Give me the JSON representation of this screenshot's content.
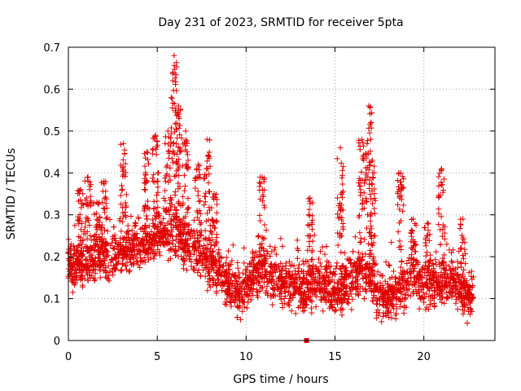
{
  "chart_data": {
    "type": "scatter",
    "title": "Day 231 of 2023, SRMTID for receiver 5pta",
    "xlabel": "GPS time / hours",
    "ylabel": "SRMTID / TECUs",
    "xlim": [
      0,
      24
    ],
    "ylim": [
      0,
      0.7
    ],
    "xticks": [
      0,
      5,
      10,
      15,
      20
    ],
    "yticks": [
      0,
      0.1,
      0.2,
      0.3,
      0.4,
      0.5,
      0.6,
      0.7
    ],
    "grid": true,
    "marker": "plus",
    "color": "#e00000",
    "series": [
      {
        "name": "SRMTID",
        "profile_hours": [
          0.0,
          0.5,
          1.0,
          1.5,
          2.0,
          2.5,
          3.0,
          3.5,
          4.0,
          4.5,
          5.0,
          5.5,
          6.0,
          6.5,
          7.0,
          7.5,
          8.0,
          8.5,
          9.0,
          9.5,
          10.0,
          10.5,
          11.0,
          11.5,
          12.0,
          12.5,
          13.0,
          13.5,
          14.0,
          14.5,
          15.0,
          15.5,
          16.0,
          16.5,
          17.0,
          17.5,
          18.0,
          18.5,
          19.0,
          19.5,
          20.0,
          20.5,
          21.0,
          21.5,
          22.0,
          22.5,
          22.8
        ],
        "profile_median": [
          0.17,
          0.18,
          0.18,
          0.19,
          0.2,
          0.2,
          0.21,
          0.22,
          0.22,
          0.24,
          0.26,
          0.25,
          0.25,
          0.23,
          0.22,
          0.2,
          0.19,
          0.17,
          0.13,
          0.11,
          0.12,
          0.16,
          0.17,
          0.15,
          0.14,
          0.13,
          0.12,
          0.13,
          0.14,
          0.13,
          0.11,
          0.12,
          0.15,
          0.17,
          0.14,
          0.11,
          0.1,
          0.11,
          0.13,
          0.15,
          0.13,
          0.13,
          0.14,
          0.14,
          0.12,
          0.1,
          0.11
        ],
        "spread": 0.05,
        "bursts": [
          {
            "x": 0.15,
            "y": 0.23
          },
          {
            "x": 0.7,
            "y": 0.36
          },
          {
            "x": 1.1,
            "y": 0.39
          },
          {
            "x": 1.6,
            "y": 0.33
          },
          {
            "x": 2.0,
            "y": 0.38
          },
          {
            "x": 3.1,
            "y": 0.47
          },
          {
            "x": 4.4,
            "y": 0.45
          },
          {
            "x": 4.9,
            "y": 0.49
          },
          {
            "x": 5.6,
            "y": 0.5
          },
          {
            "x": 5.95,
            "y": 0.68
          },
          {
            "x": 6.2,
            "y": 0.56
          },
          {
            "x": 6.6,
            "y": 0.5
          },
          {
            "x": 7.3,
            "y": 0.42
          },
          {
            "x": 7.8,
            "y": 0.48
          },
          {
            "x": 8.2,
            "y": 0.35
          },
          {
            "x": 10.9,
            "y": 0.39
          },
          {
            "x": 13.6,
            "y": 0.34
          },
          {
            "x": 15.3,
            "y": 0.46
          },
          {
            "x": 16.5,
            "y": 0.48
          },
          {
            "x": 16.9,
            "y": 0.56
          },
          {
            "x": 17.1,
            "y": 0.43
          },
          {
            "x": 18.7,
            "y": 0.4
          },
          {
            "x": 19.4,
            "y": 0.29
          },
          {
            "x": 20.2,
            "y": 0.28
          },
          {
            "x": 21.0,
            "y": 0.41
          },
          {
            "x": 22.2,
            "y": 0.29
          }
        ],
        "minimum": {
          "x": 13.4,
          "y": 0.0
        }
      }
    ]
  }
}
